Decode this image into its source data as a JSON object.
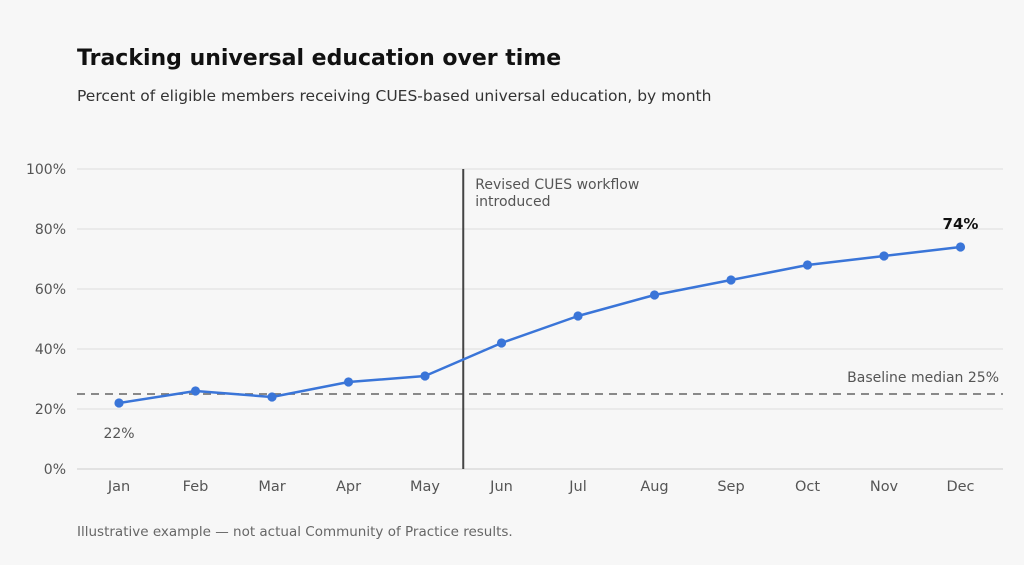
{
  "header": {
    "title": "Tracking universal education over time",
    "subtitle": "Percent of eligible members receiving CUES-based universal education, by month"
  },
  "footnote": "Illustrative example — not actual Community of Practice results.",
  "colors": {
    "line": "#3a75d8",
    "baseline": "#7a7a7a",
    "intervention": "#444444",
    "grid": "#dddddd"
  },
  "chart_data": {
    "type": "line",
    "title": "Tracking universal education over time",
    "subtitle": "Percent of eligible members receiving CUES-based universal education, by month",
    "categories": [
      "Jan",
      "Feb",
      "Mar",
      "Apr",
      "May",
      "Jun",
      "Jul",
      "Aug",
      "Sep",
      "Oct",
      "Nov",
      "Dec"
    ],
    "series": [
      {
        "values": [
          22,
          26,
          24,
          29,
          31,
          42,
          51,
          58,
          63,
          68,
          71,
          74
        ]
      }
    ],
    "ylim": [
      0,
      100
    ],
    "yticks": [
      0,
      20,
      40,
      60,
      80,
      100
    ],
    "ytick_labels": [
      "0%",
      "20%",
      "40%",
      "60%",
      "80%",
      "100%"
    ],
    "grid": true,
    "legend": "none",
    "baseline": {
      "value": 25,
      "label": "Baseline median  25%"
    },
    "intervention": {
      "between": [
        "May",
        "Jun"
      ],
      "label_lines": [
        "Revised CUES workflow",
        "introduced"
      ]
    },
    "first_point_label": "22%",
    "last_point_label": "74%"
  }
}
